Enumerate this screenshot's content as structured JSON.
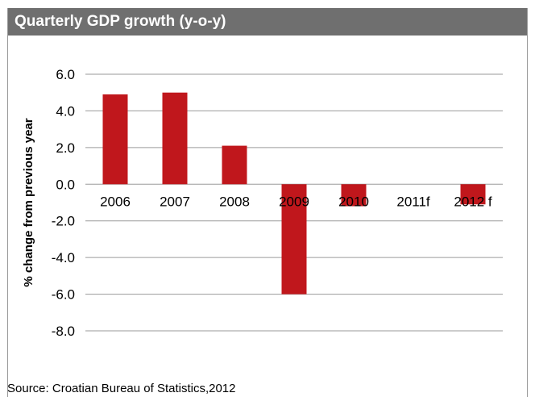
{
  "header": {
    "title": "Quarterly GDP growth (y-o-y)"
  },
  "footer": {
    "source": "Source: Croatian Bureau of Statistics,2012"
  },
  "colors": {
    "header_bg": "#6f6f6f",
    "bar": "#c0171c",
    "grid": "#9a9a9a"
  },
  "chart_data": {
    "type": "bar",
    "title": "Quarterly GDP growth (y-o-y)",
    "xlabel": "",
    "ylabel": "% change from previous year",
    "categories": [
      "2006",
      "2007",
      "2008",
      "2009",
      "2010",
      "2011f",
      "2012 f"
    ],
    "series": [
      {
        "values": [
          4.9,
          5.0,
          2.1,
          -6.0,
          -1.2,
          0.0,
          -1.1
        ]
      }
    ],
    "yticks": [
      "6.0",
      "4.0",
      "2.0",
      "0.0",
      "-2.0",
      "-4.0",
      "-6.0",
      "-8.0"
    ],
    "ylim": [
      -8,
      6
    ],
    "grid": true,
    "legend": "none"
  }
}
